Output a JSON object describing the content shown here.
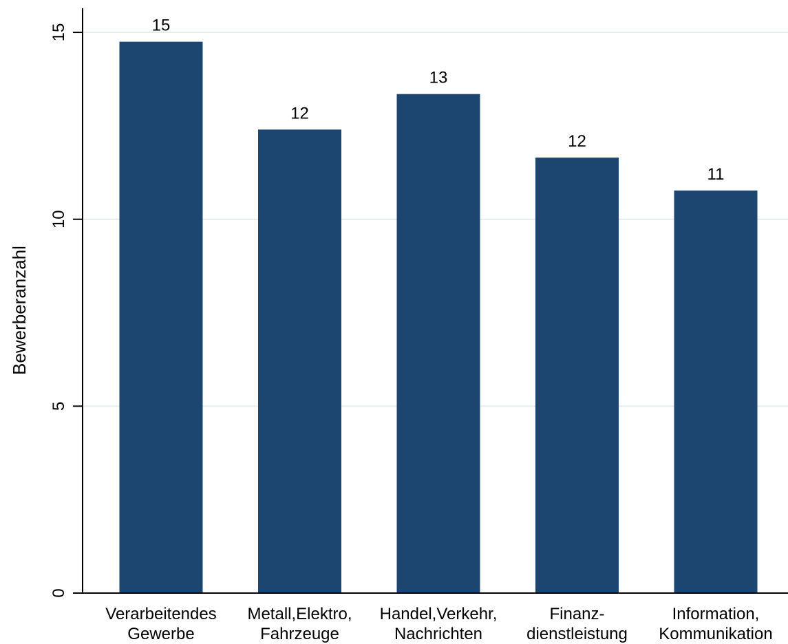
{
  "chart_data": {
    "type": "bar",
    "categories": [
      [
        "Verarbeitendes",
        "Gewerbe"
      ],
      [
        "Metall,Elektro,",
        "Fahrzeuge"
      ],
      [
        "Handel,Verkehr,",
        "Nachrichten"
      ],
      [
        "Finanz-",
        "dienstleistung"
      ],
      [
        "Information,",
        "Kommunikation"
      ]
    ],
    "values": [
      14.75,
      12.4,
      13.35,
      11.65,
      10.77
    ],
    "data_labels": [
      "15",
      "12",
      "13",
      "12",
      "11"
    ],
    "ylabel": "Bewerberanzahl",
    "ylim": [
      0,
      15
    ],
    "yticks": [
      0,
      5,
      10,
      15
    ],
    "ytick_labels": [
      "0",
      "5",
      "10",
      "15"
    ],
    "grid": true,
    "bar_color": "#1c4670",
    "grid_color": "#e4ecec"
  }
}
